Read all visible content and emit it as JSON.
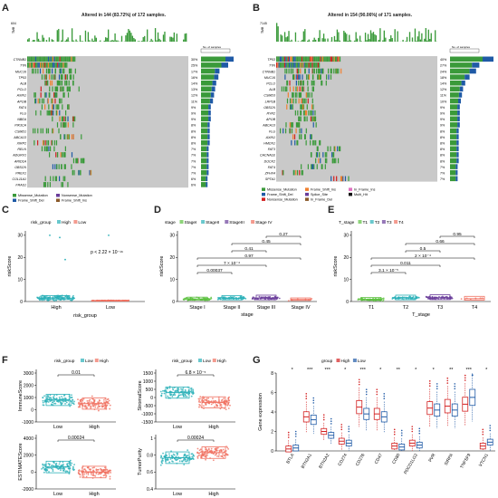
{
  "panels": {
    "A": {
      "letter": "A",
      "title": "Altered in 144 (83.72%) of 172 samples.",
      "tmb_max": "604",
      "genes": [
        "CTNNB1",
        "TTN",
        "MUC16",
        "TP53",
        "ALB",
        "PCLO",
        "AXIN1",
        "APOB",
        "FAT4",
        "FLG",
        "NBEA",
        "PIK3CA",
        "CSMD1",
        "ABCA13",
        "XIRP2",
        "RELN",
        "ADGRV1",
        "ARID1A",
        "OBSCN",
        "PREX1",
        "COL11A1",
        "FRAS1"
      ],
      "pcts": [
        "30%",
        "25%",
        "17%",
        "16%",
        "14%",
        "13%",
        "12%",
        "11%",
        "9%",
        "9%",
        "9%",
        "8%",
        "8%",
        "8%",
        "8%",
        "7%",
        "7%",
        "7%",
        "7%",
        "7%",
        "6%",
        "6%"
      ],
      "legend": [
        "Missense_Mutation",
        "Frame_Shift_Del",
        "In_Frame_Del",
        "Splice_Site",
        "Nonsense_Mutation",
        "Frame_Shift_Ins",
        "Multi_Hit"
      ]
    },
    "B": {
      "letter": "B",
      "title": "Altered in 154 (90.06%) of 171 samples.",
      "tmb_max": "7145",
      "genes": [
        "TP53",
        "TTN",
        "CTNNB1",
        "MUC16",
        "PCLO",
        "ALB",
        "CSMD3",
        "LRP1B",
        "OBSCN",
        "RYR2",
        "APOB",
        "ABCA13",
        "FLG",
        "AXIN1",
        "HMCN1",
        "FAT3",
        "CACNA1E",
        "DOCK2",
        "FAT4",
        "ZFHX4",
        "SPTA1"
      ],
      "pcts": [
        "40%",
        "27%",
        "24%",
        "18%",
        "14%",
        "12%",
        "11%",
        "10%",
        "9%",
        "9%",
        "9%",
        "9%",
        "8%",
        "8%",
        "8%",
        "8%",
        "8%",
        "8%",
        "7%",
        "7%",
        "7%"
      ],
      "legend": [
        "Missense_Mutation",
        "Frame_Shift_Del",
        "Nonsense_Mutation",
        "Frame_Shift_Ins",
        "Splice_Site",
        "In_Frame_Del",
        "In_Frame_Ins",
        "Multi_Hit"
      ]
    },
    "C": {
      "letter": "C",
      "legend_title": "risk_group",
      "legend": [
        "High",
        "Low"
      ],
      "pval": "p < 2.22 × 10⁻¹⁶",
      "ylabel": "riskScore",
      "xlabel": "risk_group"
    },
    "D": {
      "letter": "D",
      "legend_title": "stage",
      "legend": [
        "StageI",
        "StageII",
        "StageIII",
        "Stage IV"
      ],
      "ylabel": "riskScore",
      "xlabel": "stage",
      "categories": [
        "Stage I",
        "Stage II",
        "Stage III",
        "Stage IV"
      ],
      "pvals": [
        "0.27",
        "0.45",
        "0.41",
        "0.97",
        "7 × 10⁻⁴",
        "0.00037"
      ]
    },
    "E": {
      "letter": "E",
      "legend_title": "T_stage",
      "legend": [
        "T1",
        "T2",
        "T3",
        "T4"
      ],
      "ylabel": "riskScore",
      "xlabel": "T_stage",
      "categories": [
        "T1",
        "T2",
        "T3",
        "T4"
      ],
      "pvals": [
        "0.95",
        "0.66",
        "0.5",
        "2 × 10⁻⁴",
        "0.011",
        "3.1 × 10⁻⁵"
      ]
    },
    "F": {
      "letter": "F",
      "plots": [
        {
          "ylabel": "ImmuneScore",
          "pval": "0.01"
        },
        {
          "ylabel": "StromalScore",
          "pval": "6.8 × 10⁻⁵"
        },
        {
          "ylabel": "ESTIMATEScore",
          "pval": "0.00024"
        },
        {
          "ylabel": "TumorPurity",
          "pval": "0.00024"
        }
      ]
    },
    "G": {
      "letter": "G",
      "legend_title": "group",
      "legend": [
        "High",
        "Low"
      ],
      "ylabel": "Gene expression",
      "genes": [
        "BTLA",
        "BTN2A1",
        "BTN2A2",
        "CD274",
        "CD276",
        "CD47",
        "CD80",
        "PDCD1LG2",
        "PVR",
        "SIRPA",
        "TNFSF9",
        "VTCN1"
      ],
      "stars": [
        "*",
        "***",
        "***",
        "*",
        "***",
        "*",
        "**",
        "*",
        "*",
        "**",
        "***",
        "*"
      ]
    }
  },
  "chart_data": [
    {
      "type": "box",
      "panel": "C",
      "categories": [
        "High",
        "Low"
      ],
      "ylabel": "riskScore",
      "xlabel": "risk_group",
      "ylim": [
        0,
        30
      ],
      "series": [
        {
          "name": "High",
          "median": 1.6,
          "q1": 0.9,
          "q3": 2.7
        },
        {
          "name": "Low",
          "median": 0.4,
          "q1": 0.25,
          "q3": 0.55
        }
      ]
    },
    {
      "type": "box",
      "panel": "D",
      "categories": [
        "Stage I",
        "Stage II",
        "Stage III",
        "Stage IV"
      ],
      "ylabel": "riskScore",
      "ylim": [
        0,
        30
      ],
      "medians": [
        1.1,
        1.5,
        1.6,
        0.9
      ]
    },
    {
      "type": "box",
      "panel": "E",
      "categories": [
        "T1",
        "T2",
        "T3",
        "T4"
      ],
      "ylabel": "riskScore",
      "ylim": [
        0,
        30
      ],
      "medians": [
        1.0,
        1.6,
        1.7,
        1.3
      ]
    },
    {
      "type": "box",
      "panel": "F",
      "categories": [
        "Low",
        "High"
      ],
      "plots": [
        {
          "ylabel": "ImmuneScore",
          "ylim": [
            -1000,
            3000
          ],
          "medians": [
            800,
            500
          ]
        },
        {
          "ylabel": "StromalScore",
          "ylim": [
            -1500,
            1500
          ],
          "medians": [
            300,
            -300
          ]
        },
        {
          "ylabel": "ESTIMATEScore",
          "ylim": [
            -2000,
            4000
          ],
          "medians": [
            600,
            0
          ]
        },
        {
          "ylabel": "TumorPurity",
          "ylim": [
            0.4,
            1.0
          ],
          "medians": [
            0.77,
            0.83
          ]
        }
      ]
    },
    {
      "type": "box",
      "panel": "G",
      "categories": [
        "BTLA",
        "BTN2A1",
        "BTN2A2",
        "CD274",
        "CD276",
        "CD47",
        "CD80",
        "PDCD1LG2",
        "PVR",
        "SIRPA",
        "TNFSF9",
        "VTCN1"
      ],
      "ylabel": "Gene expression",
      "ylim": [
        0,
        8
      ],
      "series": [
        {
          "name": "High",
          "values": [
            0.2,
            3.5,
            2.0,
            1.0,
            4.5,
            3.8,
            0.5,
            0.8,
            4.4,
            4.6,
            4.8,
            0.5
          ]
        },
        {
          "name": "Low",
          "values": [
            0.3,
            3.2,
            1.6,
            0.8,
            3.8,
            3.5,
            0.4,
            0.6,
            4.2,
            4.2,
            5.5,
            0.9
          ]
        }
      ]
    }
  ],
  "colors": {
    "green": "#3a9a3a",
    "gray": "#c9c9c9",
    "blue": "#1f5aa6",
    "red": "#d32020",
    "orange": "#f08030",
    "purple": "#6a3d9a",
    "brown": "#8b5a2b",
    "black": "#111111",
    "teal": "#2ab0b8",
    "salmon": "#f07060",
    "pink": "#e070c0",
    "lime": "#5cc040"
  }
}
